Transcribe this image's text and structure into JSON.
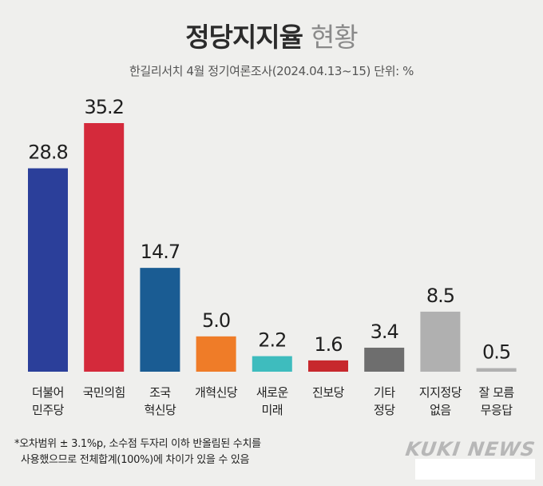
{
  "header": {
    "title_bold": "정당지지율",
    "title_light": "현황",
    "subtitle": "한길리서치 4월 정기여론조사(2024.04.13~15) 단위: %"
  },
  "chart_data": {
    "type": "bar",
    "categories": [
      [
        "더불어",
        "민주당"
      ],
      [
        "국민의힘"
      ],
      [
        "조국",
        "혁신당"
      ],
      [
        "개혁신당"
      ],
      [
        "새로운",
        "미래"
      ],
      [
        "진보당"
      ],
      [
        "기타",
        "정당"
      ],
      [
        "지지정당",
        "없음"
      ],
      [
        "잘 모름",
        "무응답"
      ]
    ],
    "values": [
      28.8,
      35.2,
      14.7,
      5.0,
      2.2,
      1.6,
      3.4,
      8.5,
      0.5
    ],
    "value_labels": [
      "28.8",
      "35.2",
      "14.7",
      "5.0",
      "2.2",
      "1.6",
      "3.4",
      "8.5",
      "0.5"
    ],
    "colors": [
      "#2b3f9a",
      "#d42a3b",
      "#1a5c93",
      "#ef7c28",
      "#3ebcbe",
      "#c7282d",
      "#6e6e6e",
      "#b0b0b0",
      "#b0b0b0"
    ],
    "title": "정당지지율 현황",
    "ylim": [
      0,
      35.2
    ]
  },
  "footnote": {
    "line1": "*오차범위 ± 3.1%p, 소수점 두자리 이하 반올림된 수치를",
    "line2": "사용했으므로 전체합계(100%)에 차이가 있을 수 있음"
  },
  "brand": {
    "logo": "KUKI NEWS"
  }
}
